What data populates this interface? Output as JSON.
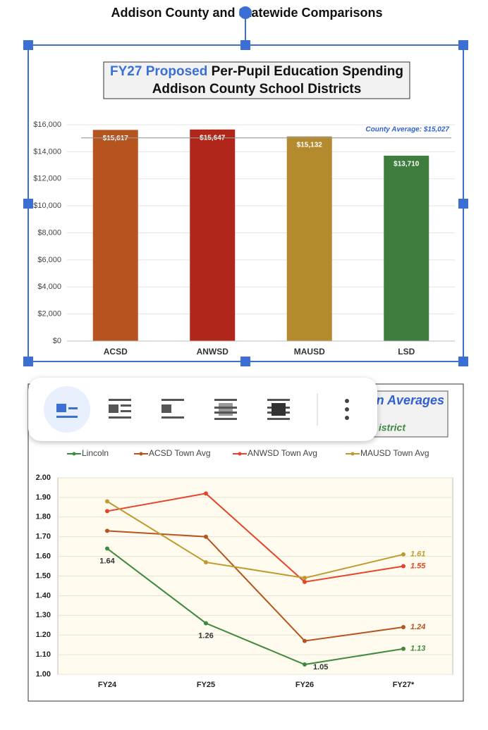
{
  "header": {
    "title": "Addison County and Statewide Comparisons"
  },
  "chart_data": [
    {
      "type": "bar",
      "title": [
        "FY27 Proposed",
        "Per-Pupil Education Spending",
        "Addison County School Districts"
      ],
      "categories": [
        "ACSD",
        "ANWSD",
        "MAUSD",
        "LSD"
      ],
      "values": [
        15617,
        15647,
        15132,
        13710
      ],
      "value_labels": [
        "$15,617",
        "$15,647",
        "$15,132",
        "$13,710"
      ],
      "colors": [
        "#b5541f",
        "#b0261a",
        "#b38b2e",
        "#3f7d3e"
      ],
      "ylim": [
        0,
        16000
      ],
      "yticks": [
        {
          "value": 0,
          "label": "$0"
        },
        {
          "value": 2000,
          "label": "$2,000"
        },
        {
          "value": 4000,
          "label": "$4,000"
        },
        {
          "value": 6000,
          "label": "$6,000"
        },
        {
          "value": 8000,
          "label": "$8,000"
        },
        {
          "value": 10000,
          "label": "$10,000"
        },
        {
          "value": 12000,
          "label": "$12,000"
        },
        {
          "value": 14000,
          "label": "$14,000"
        },
        {
          "value": 16000,
          "label": "$16,000"
        }
      ],
      "grid": true,
      "reference_line": {
        "value": 15027,
        "label": "County Average: $15,027"
      }
    },
    {
      "type": "line",
      "title": "n Averages",
      "subtitle": "istrict",
      "categories": [
        "FY24",
        "FY25",
        "FY26",
        "FY27*"
      ],
      "series": [
        {
          "name": "Lincoln",
          "color": "#3f8a3f",
          "values": [
            1.64,
            1.26,
            1.05,
            1.13
          ],
          "data_labels": [
            0,
            1,
            2,
            3
          ]
        },
        {
          "name": "ACSD Town Avg",
          "color": "#b5541f",
          "values": [
            1.73,
            1.7,
            1.17,
            1.24
          ],
          "data_labels": [
            3
          ]
        },
        {
          "name": "ANWSD Town Avg",
          "color": "#e5442a",
          "values": [
            1.83,
            1.92,
            1.47,
            1.55
          ],
          "data_labels": [
            3
          ]
        },
        {
          "name": "MAUSD Town Avg",
          "color": "#bf9a2e",
          "values": [
            1.88,
            1.57,
            1.49,
            1.61
          ],
          "data_labels": [
            3
          ]
        }
      ],
      "ylim": [
        1,
        2
      ],
      "yticks": [
        {
          "value": 1,
          "label": "1.00"
        },
        {
          "value": 1.1,
          "label": "1.10"
        },
        {
          "value": 1.2,
          "label": "1.20"
        },
        {
          "value": 1.3,
          "label": "1.30"
        },
        {
          "value": 1.4,
          "label": "1.40"
        },
        {
          "value": 1.5,
          "label": "1.50"
        },
        {
          "value": 1.6,
          "label": "1.60"
        },
        {
          "value": 1.7,
          "label": "1.70"
        },
        {
          "value": 1.8,
          "label": "1.80"
        },
        {
          "value": 1.9,
          "label": "1.90"
        },
        {
          "value": 2,
          "label": "2.00"
        }
      ],
      "grid": true,
      "legend": "top"
    }
  ]
}
